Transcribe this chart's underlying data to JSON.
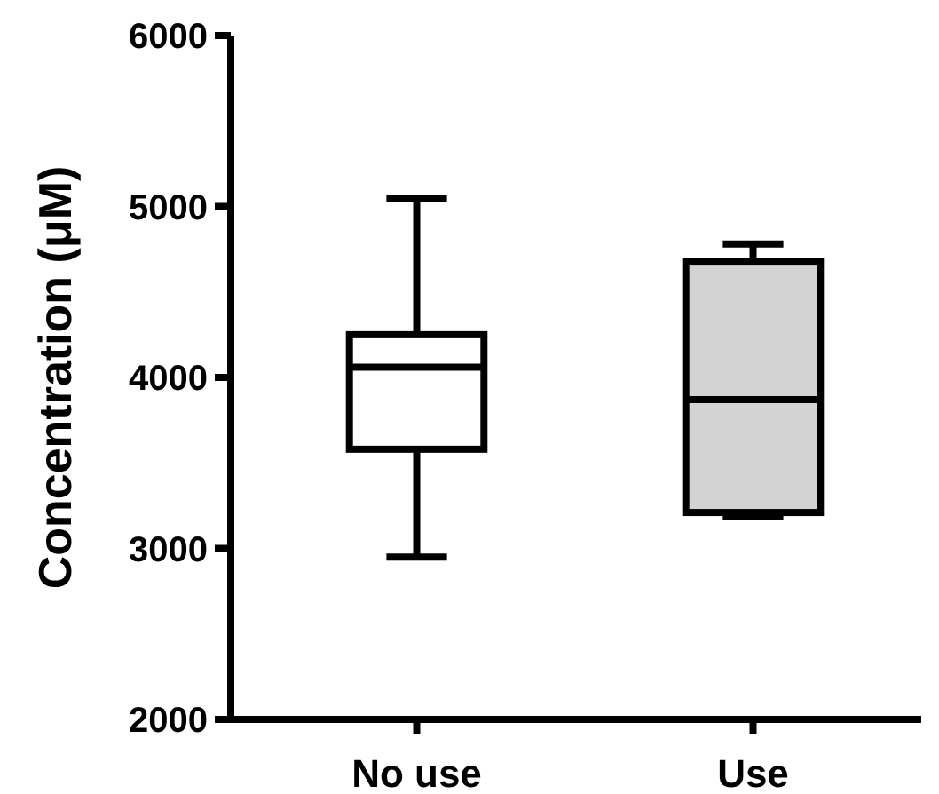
{
  "chart_data": {
    "type": "box",
    "ylabel": "Concentration (μM)",
    "categories": [
      "No use",
      "Use"
    ],
    "colors": [
      "#ffffff",
      "#d3d3d3"
    ],
    "boxes": [
      {
        "low": 2950,
        "q1": 3580,
        "median": 4060,
        "q3": 4250,
        "high": 5050
      },
      {
        "low": 3190,
        "q1": 3210,
        "median": 3870,
        "q3": 4680,
        "high": 4780
      }
    ],
    "ylim": [
      2000,
      6000
    ],
    "yticks": [
      2000,
      3000,
      4000,
      5000,
      6000
    ]
  }
}
